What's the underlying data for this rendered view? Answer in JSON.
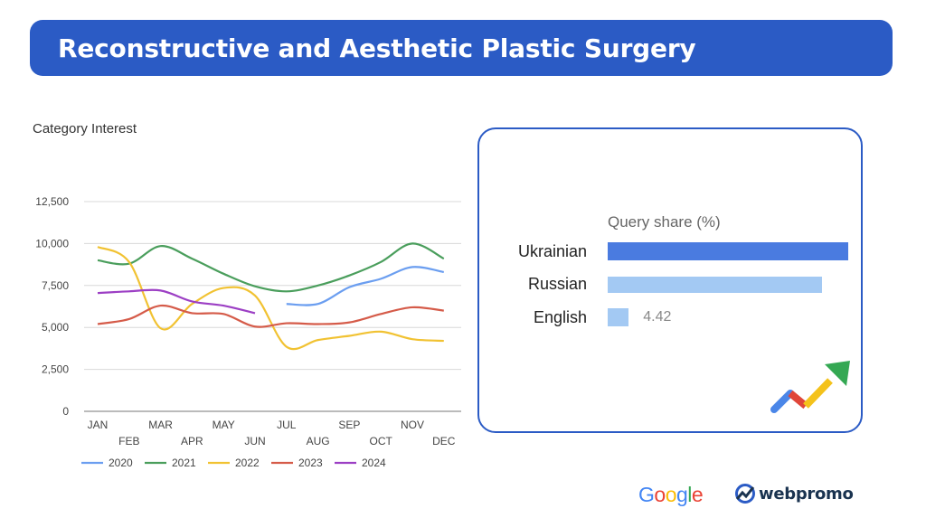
{
  "header": {
    "title": "Reconstructive and Aesthetic Plastic Surgery"
  },
  "chart_data": [
    {
      "type": "line",
      "title": "Category Interest",
      "xlabel": "",
      "ylabel": "",
      "ylim": [
        0,
        12500
      ],
      "yticks": [
        "0",
        "2,500",
        "5,000",
        "7,500",
        "10,000",
        "12,500"
      ],
      "ytick_values": [
        0,
        2500,
        5000,
        7500,
        10000,
        12500
      ],
      "categories": [
        "JAN",
        "FEB",
        "MAR",
        "APR",
        "MAY",
        "JUN",
        "JUL",
        "AUG",
        "SEP",
        "OCT",
        "NOV",
        "DEC"
      ],
      "grid": true,
      "legend_position": "bottom-left",
      "series": [
        {
          "name": "2020",
          "color": "#6b9ef0",
          "values": [
            null,
            null,
            null,
            null,
            null,
            null,
            6400,
            6400,
            7400,
            7900,
            8600,
            8300
          ]
        },
        {
          "name": "2021",
          "color": "#4a9e5c",
          "values": [
            9000,
            8800,
            9850,
            9100,
            8200,
            7450,
            7150,
            7500,
            8100,
            8900,
            10000,
            9100
          ]
        },
        {
          "name": "2022",
          "color": "#f1c232",
          "values": [
            9800,
            8900,
            4950,
            6400,
            7350,
            6900,
            3850,
            4250,
            4500,
            4750,
            4300,
            4200
          ]
        },
        {
          "name": "2023",
          "color": "#d55b49",
          "values": [
            5200,
            5500,
            6300,
            5850,
            5800,
            5050,
            5250,
            5200,
            5300,
            5800,
            6200,
            6000
          ]
        },
        {
          "name": "2024",
          "color": "#9c3fc4",
          "values": [
            7050,
            7150,
            7200,
            6550,
            6300,
            5850,
            null,
            null,
            null,
            null,
            null,
            null
          ]
        }
      ]
    },
    {
      "type": "bar",
      "title": "Query share (%)",
      "orientation": "horizontal",
      "categories": [
        "Ukrainian",
        "Russian",
        "English"
      ],
      "values": [
        50.6,
        45.0,
        4.42
      ],
      "value_labels": [
        null,
        null,
        "4.42"
      ],
      "colors": [
        "#4a7be0",
        "#a3c9f3",
        "#a3c9f3"
      ]
    }
  ],
  "footer": {
    "google_logo": [
      "G",
      "o",
      "o",
      "g",
      "l",
      "e"
    ],
    "google_colors": [
      "#4285f4",
      "#ea4335",
      "#fbbc05",
      "#4285f4",
      "#34a853",
      "#ea4335"
    ],
    "webpromo_logo": "webpromo"
  }
}
